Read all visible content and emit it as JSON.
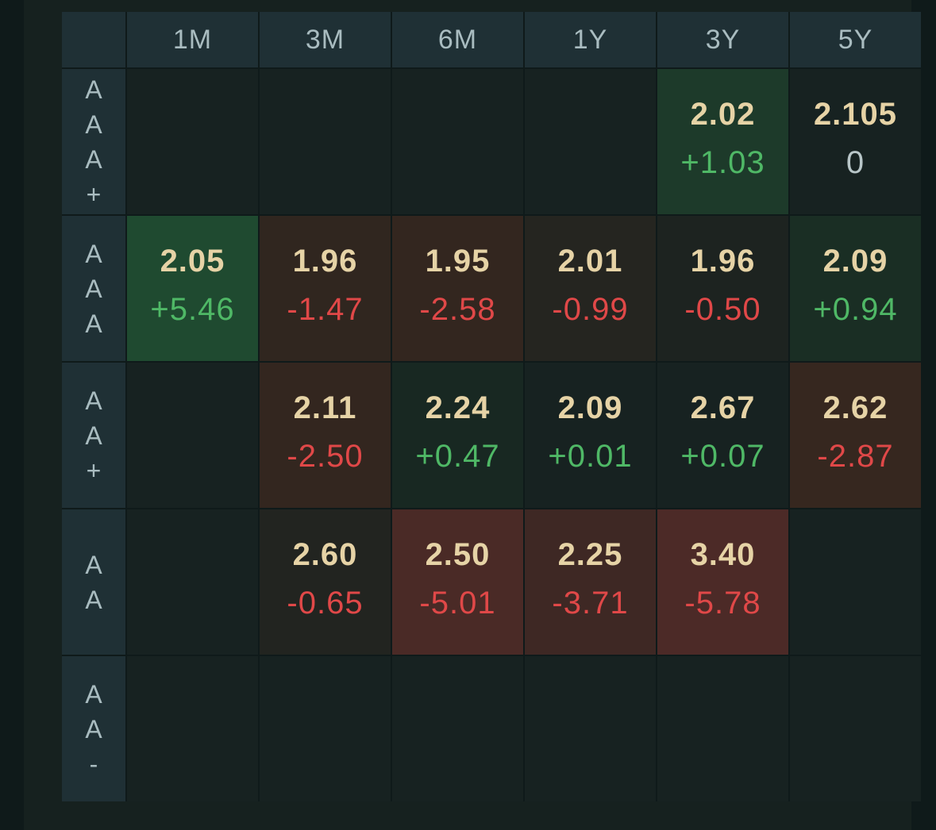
{
  "columns": [
    "1M",
    "3M",
    "6M",
    "1Y",
    "3Y",
    "5Y"
  ],
  "rows": [
    {
      "rating": [
        "A",
        "A",
        "A",
        "+"
      ],
      "cells": [
        null,
        null,
        null,
        null,
        {
          "yield": "2.02",
          "change": "+1.03",
          "dir": "up",
          "bg": "#1d3a2a"
        },
        {
          "yield": "2.105",
          "change": "0",
          "dir": "flat",
          "bg": "#172221"
        }
      ]
    },
    {
      "rating": [
        "A",
        "A",
        "A"
      ],
      "cells": [
        {
          "yield": "2.05",
          "change": "+5.46",
          "dir": "up",
          "bg": "#1f4a30"
        },
        {
          "yield": "1.96",
          "change": "-1.47",
          "dir": "down",
          "bg": "#30261f"
        },
        {
          "yield": "1.95",
          "change": "-2.58",
          "dir": "down",
          "bg": "#33261f"
        },
        {
          "yield": "2.01",
          "change": "-0.99",
          "dir": "down",
          "bg": "#252520"
        },
        {
          "yield": "1.96",
          "change": "-0.50",
          "dir": "down",
          "bg": "#1d2320"
        },
        {
          "yield": "2.09",
          "change": "+0.94",
          "dir": "up",
          "bg": "#1a2e24"
        }
      ]
    },
    {
      "rating": [
        "A",
        "A",
        "+"
      ],
      "cells": [
        null,
        {
          "yield": "2.11",
          "change": "-2.50",
          "dir": "down",
          "bg": "#33261f"
        },
        {
          "yield": "2.24",
          "change": "+0.47",
          "dir": "up",
          "bg": "#182822"
        },
        {
          "yield": "2.09",
          "change": "+0.01",
          "dir": "up",
          "bg": "#172221"
        },
        {
          "yield": "2.67",
          "change": "+0.07",
          "dir": "up",
          "bg": "#172221"
        },
        {
          "yield": "2.62",
          "change": "-2.87",
          "dir": "down",
          "bg": "#36271f"
        }
      ]
    },
    {
      "rating": [
        "A",
        "A"
      ],
      "cells": [
        null,
        {
          "yield": "2.60",
          "change": "-0.65",
          "dir": "down",
          "bg": "#222420"
        },
        {
          "yield": "2.50",
          "change": "-5.01",
          "dir": "down",
          "bg": "#4a2a26"
        },
        {
          "yield": "2.25",
          "change": "-3.71",
          "dir": "down",
          "bg": "#3e2824"
        },
        {
          "yield": "3.40",
          "change": "-5.78",
          "dir": "down",
          "bg": "#4c2a27"
        },
        null
      ]
    },
    {
      "rating": [
        "A",
        "A",
        "-"
      ],
      "cells": [
        null,
        null,
        null,
        null,
        null,
        null
      ]
    }
  ]
}
